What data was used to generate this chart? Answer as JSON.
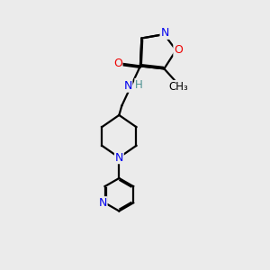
{
  "background_color": "#ebebeb",
  "bond_color": "#000000",
  "bond_width": 1.6,
  "atom_colors": {
    "N": "#0000ee",
    "O": "#ee0000",
    "H": "#4a9090",
    "C": "#000000"
  }
}
